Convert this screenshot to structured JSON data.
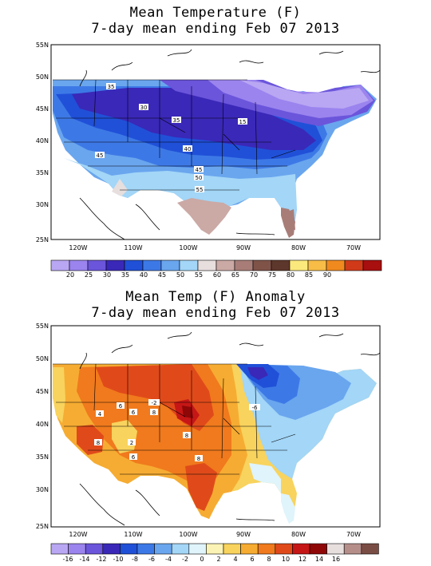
{
  "panels": [
    {
      "title_line1": "Mean Temperature (F)",
      "title_line2": "7-day mean ending Feb 07 2013",
      "lat_labels": [
        "55N",
        "50N",
        "45N",
        "40N",
        "35N",
        "30N",
        "25N"
      ],
      "lon_labels": [
        "120W",
        "110W",
        "100W",
        "90W",
        "80W",
        "70W"
      ],
      "contour_labels": [
        "35",
        "30",
        "35",
        "15",
        "45",
        "40",
        "45",
        "50",
        "55"
      ],
      "legend_colors": [
        "#b9a7f3",
        "#9b84ee",
        "#6b55db",
        "#3a28b8",
        "#2050d8",
        "#3d79e6",
        "#6aa6ee",
        "#a3d6f7",
        "#e7dede",
        "#cba9a5",
        "#a87d78",
        "#805349",
        "#5e372c",
        "#fbe97d",
        "#f7bd47",
        "#f08a1f",
        "#d13a19",
        "#a80f0f"
      ],
      "legend_labels": [
        "20",
        "25",
        "30",
        "35",
        "40",
        "45",
        "50",
        "55",
        "60",
        "65",
        "70",
        "75",
        "80",
        "85",
        "90"
      ]
    },
    {
      "title_line1": "Mean Temp (F) Anomaly",
      "title_line2": "7-day mean ending Feb 07 2013",
      "lat_labels": [
        "55N",
        "50N",
        "45N",
        "40N",
        "35N",
        "30N",
        "25N"
      ],
      "lon_labels": [
        "120W",
        "110W",
        "100W",
        "90W",
        "80W",
        "70W"
      ],
      "contour_labels": [
        "4",
        "6",
        "6",
        "8",
        "8",
        "8",
        "8",
        "6",
        "2",
        "-6",
        "-2"
      ],
      "legend_colors": [
        "#b9a7f3",
        "#9b84ee",
        "#6b55db",
        "#3a28b8",
        "#2050d8",
        "#3d79e6",
        "#6aa6ee",
        "#a3d6f7",
        "#dff4fb",
        "#fbf3b5",
        "#f8d35d",
        "#f6ac32",
        "#f07a1d",
        "#e04a1a",
        "#c61616",
        "#8f0707",
        "#e7dede",
        "#b58e8a",
        "#7a4d44"
      ],
      "legend_labels": [
        "-16",
        "-14",
        "-12",
        "-10",
        "-8",
        "-6",
        "-4",
        "-2",
        "0",
        "2",
        "4",
        "6",
        "8",
        "10",
        "12",
        "14",
        "16"
      ]
    }
  ]
}
